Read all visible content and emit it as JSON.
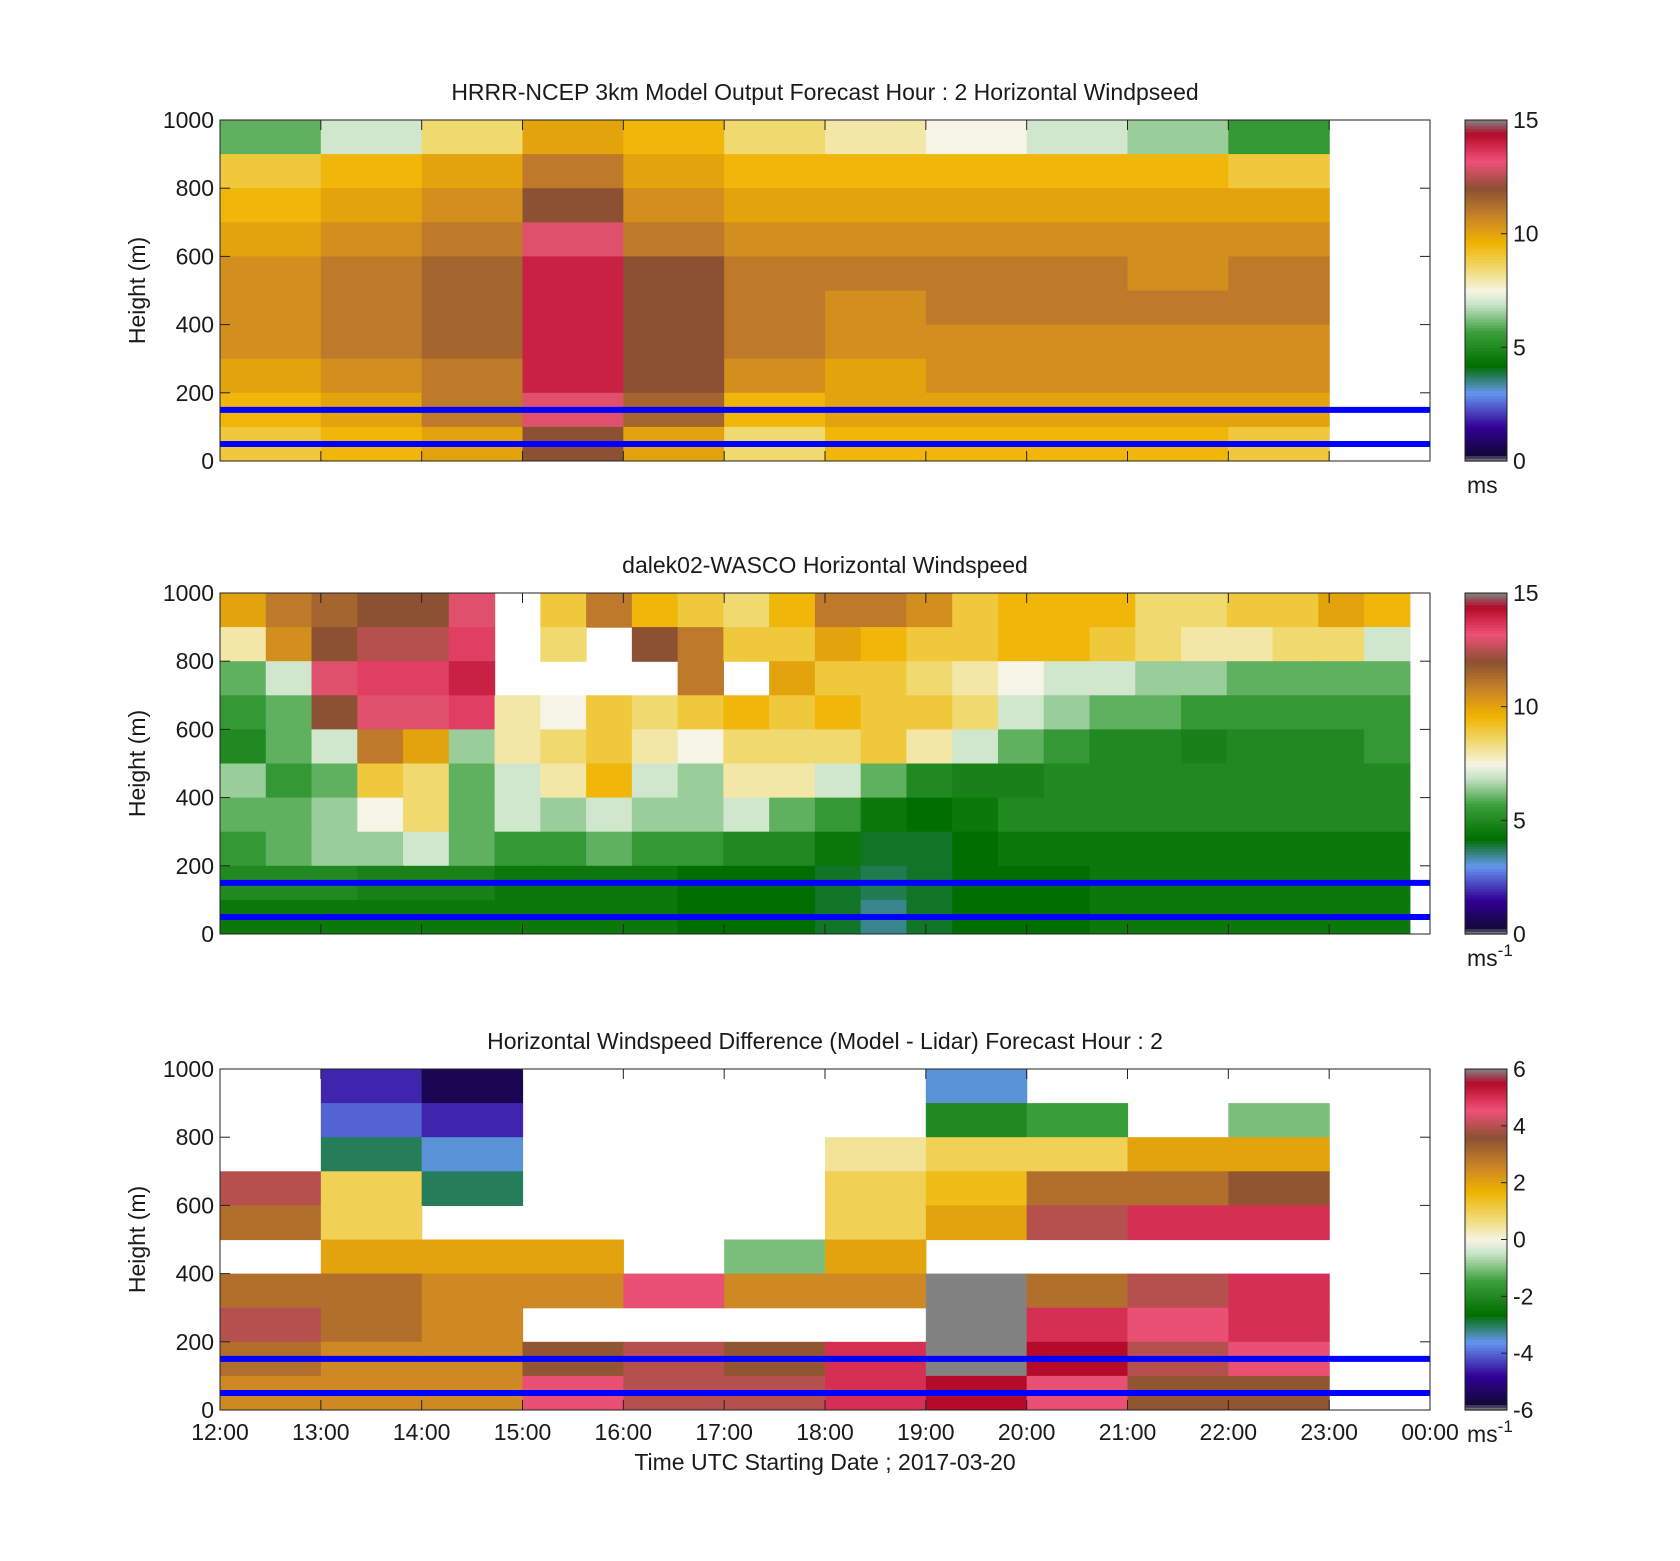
{
  "figure": {
    "xlabel": "Time UTC  Starting Date ; 2017-03-20",
    "x_ticks": [
      "12:00",
      "13:00",
      "14:00",
      "15:00",
      "16:00",
      "17:00",
      "18:00",
      "19:00",
      "20:00",
      "21:00",
      "22:00",
      "23:00",
      "00:00"
    ],
    "reference_heights_m": [
      50,
      150
    ],
    "reference_line_color": "#0000ff"
  },
  "chart_data": [
    {
      "type": "heatmap",
      "title": "HRRR-NCEP 3km Model Output   Forecast Hour : 2 Horizontal Windpseed",
      "ylabel": "Height (m)",
      "ylim": [
        0,
        1000
      ],
      "y_ticks": [
        0,
        200,
        400,
        600,
        800,
        1000
      ],
      "colorbar": {
        "min": 0,
        "max": 15,
        "ticks": [
          0,
          5,
          10,
          15
        ],
        "unit_text": "ms",
        "unit_sup": ""
      },
      "x_bins_hours": [
        12,
        13,
        14,
        15,
        16,
        17,
        18,
        19,
        20,
        21,
        22
      ],
      "y_levels_m": [
        1000,
        900,
        800,
        700,
        600,
        500,
        400,
        300,
        200,
        100
      ],
      "values": [
        [
          6,
          7,
          8.5,
          10,
          9.5,
          8.5,
          8,
          7.5,
          7,
          6.5,
          5.5
        ],
        [
          9,
          9.5,
          10,
          11,
          10,
          9.5,
          9.5,
          9.5,
          9.5,
          9.5,
          9
        ],
        [
          9.5,
          10,
          10.5,
          12,
          10.5,
          10,
          10,
          10,
          10,
          10,
          10
        ],
        [
          10,
          10.5,
          11,
          13,
          11,
          10.5,
          10.5,
          10.5,
          10.5,
          10.5,
          10.5
        ],
        [
          10.5,
          11,
          11.5,
          14,
          12,
          11,
          11,
          11,
          11,
          10.5,
          11
        ],
        [
          10.5,
          11,
          11.5,
          14,
          12,
          11,
          10.5,
          11,
          11,
          11,
          11
        ],
        [
          10.5,
          11,
          11.5,
          14,
          12,
          11,
          10.5,
          10.5,
          10.5,
          10.5,
          10.5
        ],
        [
          10,
          10.5,
          11,
          14,
          12,
          10.5,
          10,
          10.5,
          10.5,
          10.5,
          10.5
        ],
        [
          9.5,
          10,
          11,
          13,
          11.5,
          9.5,
          10,
          10,
          10,
          10,
          10
        ],
        [
          9,
          9.5,
          10,
          12,
          10,
          8.5,
          9.5,
          9.5,
          9.5,
          9.5,
          9
        ]
      ]
    },
    {
      "type": "heatmap",
      "title": "dalek02-WASCO  Horizontal Windspeed",
      "ylabel": "Height (m)",
      "ylim": [
        0,
        1000
      ],
      "y_ticks": [
        0,
        200,
        400,
        600,
        800,
        1000
      ],
      "colorbar": {
        "min": 0,
        "max": 15,
        "ticks": [
          0,
          5,
          10,
          15
        ],
        "unit_text": "ms",
        "unit_sup": "-1"
      },
      "x_range_hours": [
        12,
        23.8
      ],
      "y_levels_m": [
        1000,
        900,
        800,
        700,
        600,
        500,
        400,
        300,
        200,
        100
      ],
      "values": [
        [
          10,
          11,
          11.5,
          12,
          12,
          13,
          null,
          9,
          11,
          9.5,
          9,
          8.5,
          9.5,
          11,
          11,
          10.5,
          9,
          9.5,
          9.5,
          9.5,
          8.5,
          8.5,
          9,
          9,
          10,
          9.5
        ],
        [
          8,
          10.5,
          12,
          12.5,
          12.5,
          13.5,
          null,
          8.5,
          null,
          12,
          11,
          9,
          9,
          10,
          9.5,
          9,
          9,
          9.5,
          9.5,
          9,
          8.5,
          8,
          8,
          8.5,
          8.5,
          7
        ],
        [
          6,
          7,
          13,
          13.5,
          13.5,
          14,
          null,
          null,
          null,
          null,
          11,
          null,
          10,
          9,
          9,
          8.5,
          8,
          7.5,
          7,
          7,
          6.5,
          6.5,
          6,
          6,
          6,
          6
        ],
        [
          5.5,
          6,
          12,
          13,
          13,
          13.5,
          8,
          7.5,
          9,
          8.5,
          9,
          9.5,
          9,
          9.5,
          9,
          9,
          8.5,
          7,
          6.5,
          6,
          6,
          5.5,
          5.5,
          5.5,
          5.5,
          5.5
        ],
        [
          5,
          6,
          7,
          11,
          10,
          6.5,
          8,
          8.5,
          9,
          8,
          7.5,
          8.5,
          8.5,
          8.5,
          9,
          8,
          7,
          6,
          5.5,
          5,
          5,
          4.8,
          5,
          5,
          5,
          5.5
        ],
        [
          6.5,
          5.5,
          6,
          9,
          8.5,
          6,
          7,
          8,
          9.5,
          7,
          6.5,
          8,
          8,
          7,
          6,
          5,
          4.8,
          4.8,
          5,
          5,
          5,
          5,
          5,
          5,
          5,
          5
        ],
        [
          6,
          6,
          6.5,
          7.5,
          8.5,
          6,
          7,
          6.5,
          7,
          6.5,
          6.5,
          7,
          6,
          5.5,
          4.5,
          4.2,
          4.5,
          5,
          5,
          5,
          5,
          5,
          5,
          5,
          5,
          5
        ],
        [
          5.5,
          6,
          6.5,
          6.5,
          7,
          6,
          5.5,
          5.5,
          6,
          5.5,
          5.5,
          5,
          5,
          4.5,
          4,
          4,
          4.2,
          4.5,
          4.5,
          4.5,
          4.5,
          4.5,
          4.5,
          4.5,
          4.5,
          4.5
        ],
        [
          5,
          5,
          5,
          4.8,
          4.8,
          4.8,
          4.5,
          4.5,
          4.5,
          4.5,
          4.2,
          4.2,
          4.2,
          4,
          3.8,
          4,
          4.2,
          4.2,
          4.2,
          4.5,
          4.5,
          4.5,
          4.5,
          4.5,
          4.5,
          4.5
        ],
        [
          4.5,
          4.5,
          4.5,
          4.5,
          4.5,
          4.5,
          4.5,
          4.5,
          4.5,
          4.5,
          4.2,
          4.2,
          4.2,
          4,
          3.5,
          4,
          4.2,
          4.2,
          4.2,
          4.5,
          4.5,
          4.5,
          4.5,
          4.5,
          4.5,
          4.5
        ]
      ]
    },
    {
      "type": "heatmap",
      "title": "Horizontal Windspeed Difference (Model - Lidar) Forecast Hour : 2",
      "ylabel": "Height (m)",
      "ylim": [
        0,
        1000
      ],
      "y_ticks": [
        0,
        200,
        400,
        600,
        800,
        1000
      ],
      "colorbar": {
        "min": -6,
        "max": 6,
        "ticks": [
          -6,
          -4,
          -2,
          0,
          2,
          4,
          6
        ],
        "unit_text": "ms",
        "unit_sup": "-1"
      },
      "x_bins_hours": [
        12,
        13,
        14,
        15,
        16,
        17,
        18,
        19,
        20,
        21,
        22
      ],
      "y_levels_m": [
        1000,
        900,
        800,
        700,
        600,
        500,
        400,
        300,
        200,
        100
      ],
      "values": [
        [
          null,
          -4.5,
          -5.5,
          null,
          null,
          null,
          null,
          -3.5,
          null,
          null,
          null
        ],
        [
          null,
          -4,
          -4.5,
          null,
          null,
          null,
          null,
          -2,
          -1.5,
          null,
          -1
        ],
        [
          null,
          -3,
          -3.5,
          null,
          null,
          null,
          0.5,
          1,
          1,
          2,
          2
        ],
        [
          4,
          1,
          -3,
          null,
          null,
          null,
          1,
          1.5,
          3,
          3,
          3.5
        ],
        [
          3,
          1,
          null,
          null,
          null,
          null,
          1,
          2,
          4,
          5,
          5
        ],
        [
          null,
          2,
          2,
          2,
          null,
          -1,
          2,
          null,
          null,
          null,
          null
        ],
        [
          3,
          3,
          2.5,
          2.5,
          4.5,
          2.5,
          2.5,
          6,
          3,
          4,
          5
        ],
        [
          4,
          3,
          2.5,
          null,
          null,
          null,
          null,
          6,
          5,
          4.5,
          5
        ],
        [
          3,
          2.5,
          2.5,
          3.5,
          4,
          3.5,
          5,
          6,
          5.5,
          4,
          4.5
        ],
        [
          2.5,
          2.5,
          2.5,
          4.5,
          4,
          4,
          5,
          5.5,
          4.5,
          3.5,
          3.5
        ]
      ]
    }
  ]
}
